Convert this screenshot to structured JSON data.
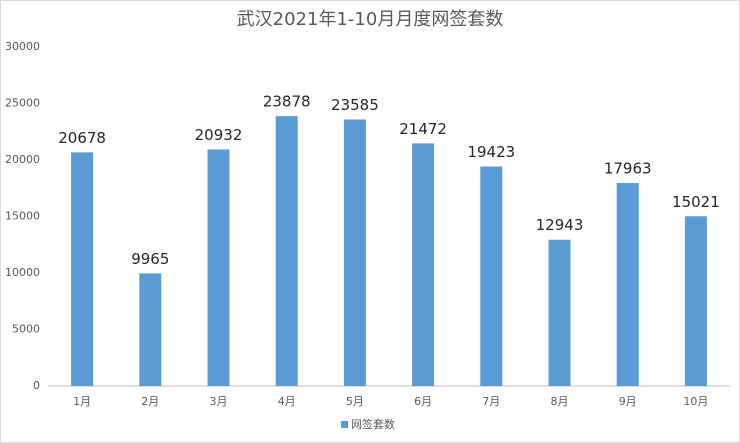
{
  "chart_data": {
    "type": "bar",
    "title": "武汉2021年1-10月月度网签套数",
    "categories": [
      "1月",
      "2月",
      "3月",
      "4月",
      "5月",
      "6月",
      "7月",
      "8月",
      "9月",
      "10月"
    ],
    "series": [
      {
        "name": "网签套数",
        "color": "#5b9bd5",
        "values": [
          20678,
          9965,
          20932,
          23878,
          23585,
          21472,
          19423,
          12943,
          17963,
          15021
        ]
      }
    ],
    "ylim": [
      0,
      30000
    ],
    "yticks": [
      0,
      5000,
      10000,
      15000,
      20000,
      25000,
      30000
    ],
    "grid": false,
    "legend": "bottom"
  }
}
